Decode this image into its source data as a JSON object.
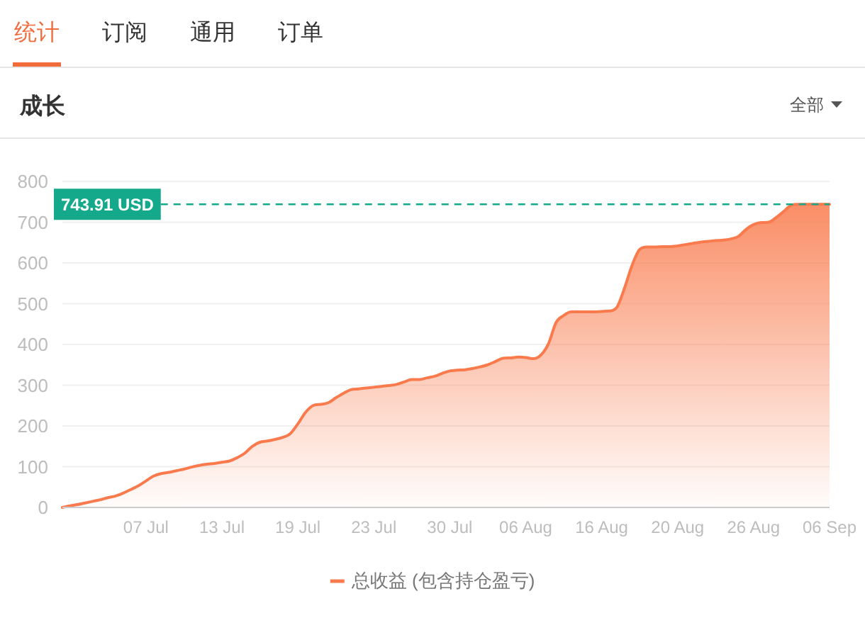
{
  "chart_data": {
    "type": "area",
    "title": "成长",
    "annotations": [
      "统计",
      "订阅",
      "通用",
      "订单",
      "全部"
    ],
    "categories": [
      null,
      null,
      null,
      null,
      null,
      null,
      null,
      null,
      null,
      null,
      null,
      "07 Jul",
      null,
      null,
      null,
      null,
      null,
      null,
      null,
      null,
      null,
      "13 Jul",
      null,
      null,
      null,
      null,
      null,
      null,
      null,
      null,
      null,
      "19 Jul",
      null,
      null,
      null,
      null,
      null,
      null,
      null,
      null,
      null,
      "23 Jul",
      null,
      null,
      null,
      null,
      null,
      null,
      null,
      null,
      null,
      "30 Jul",
      null,
      null,
      null,
      null,
      null,
      null,
      null,
      null,
      null,
      "06 Aug",
      null,
      null,
      null,
      null,
      null,
      null,
      null,
      null,
      null,
      "16 Aug",
      null,
      null,
      null,
      null,
      null,
      null,
      null,
      null,
      null,
      "20 Aug",
      null,
      null,
      null,
      null,
      null,
      null,
      null,
      null,
      null,
      "26 Aug",
      null,
      null,
      null,
      null,
      null,
      null,
      null,
      null,
      null,
      "06 Sep"
    ],
    "series": [
      {
        "name": "总收益 (包含持仓盈亏)",
        "color": "#f97a4c",
        "values": [
          0,
          4,
          7,
          11,
          15,
          19,
          24,
          28,
          35,
          44,
          53,
          65,
          77,
          83,
          86,
          90,
          94,
          99,
          103,
          106,
          108,
          111,
          114,
          122,
          133,
          150,
          160,
          163,
          167,
          172,
          181,
          205,
          233,
          250,
          253,
          257,
          269,
          280,
          289,
          291,
          293,
          295,
          297,
          299,
          302,
          308,
          314,
          314,
          318,
          322,
          329,
          335,
          337,
          338,
          341,
          345,
          350,
          358,
          366,
          367,
          369,
          368,
          365,
          374,
          402,
          454,
          471,
          480,
          480,
          480,
          480,
          481,
          482,
          491,
          538,
          594,
          633,
          639,
          639,
          640,
          640,
          642,
          645,
          648,
          651,
          653,
          655,
          656,
          659,
          665,
          682,
          694,
          699,
          700,
          712,
          727,
          742,
          744,
          744,
          744,
          744,
          744
        ]
      }
    ],
    "ylim": [
      0,
      800
    ],
    "yticks": [
      0,
      100,
      200,
      300,
      400,
      500,
      600,
      700,
      800
    ],
    "grid": "y",
    "legend": "bottom",
    "ref_lines": [
      {
        "axis": "y",
        "value": 743.91,
        "label": "743.91 USD",
        "color": "#14a98b",
        "line_style": "dashed"
      }
    ]
  }
}
